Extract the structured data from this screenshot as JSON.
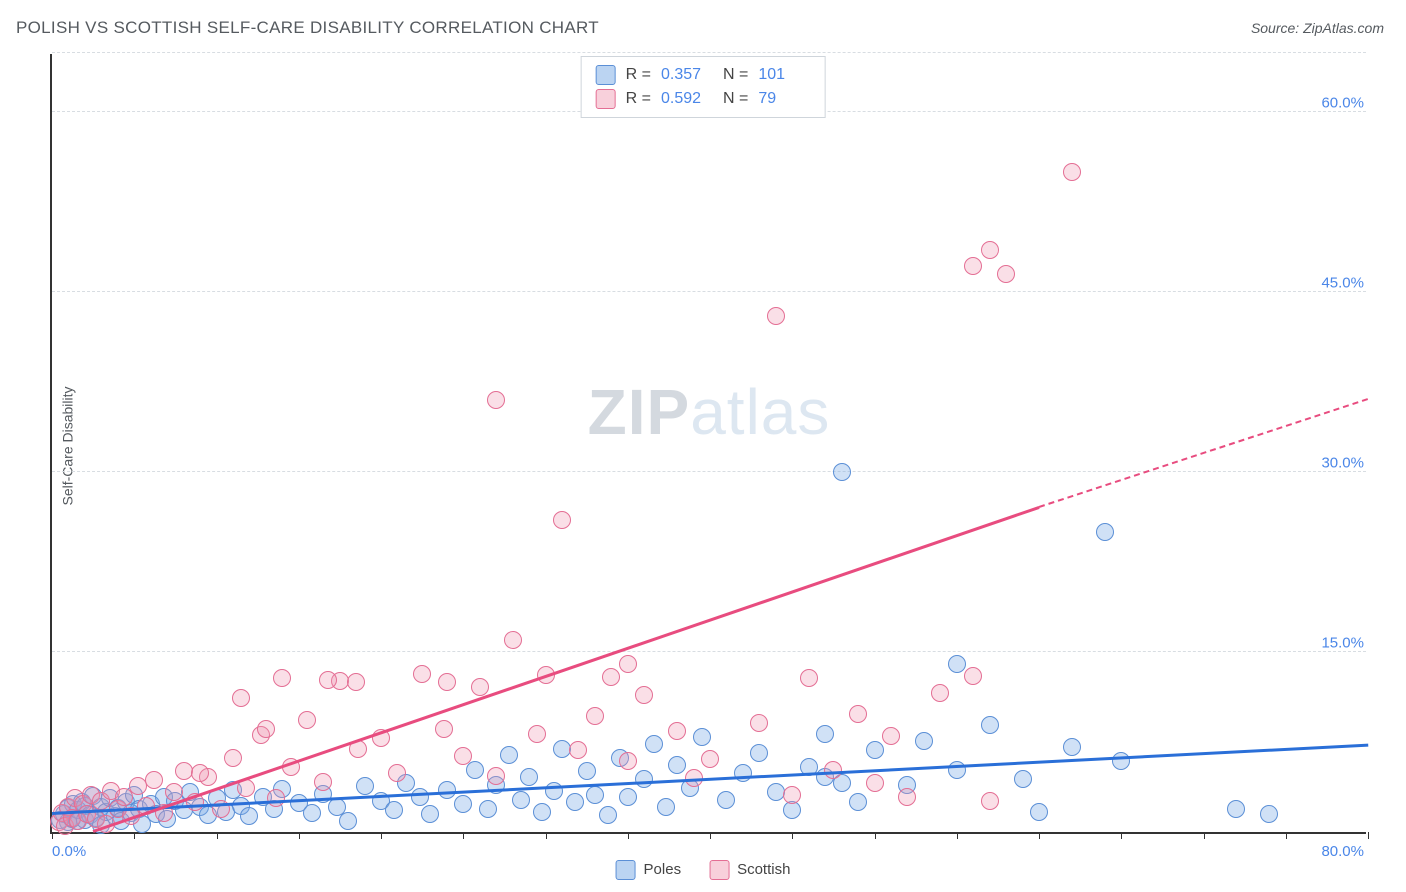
{
  "title": "POLISH VS SCOTTISH SELF-CARE DISABILITY CORRELATION CHART",
  "source": "Source: ZipAtlas.com",
  "ylabel": "Self-Care Disability",
  "watermark": {
    "bold": "ZIP",
    "rest": "atlas"
  },
  "chart": {
    "type": "scatter",
    "xlim": [
      0,
      80
    ],
    "ylim": [
      0,
      65
    ],
    "yticks": [
      15,
      30,
      45,
      60
    ],
    "ytick_labels": [
      "15.0%",
      "30.0%",
      "45.0%",
      "60.0%"
    ],
    "xtick_step": 5,
    "x_min_label": "0.0%",
    "x_max_label": "80.0%",
    "grid_color": "#d8dde2",
    "background_color": "#ffffff",
    "axis_color": "#333333",
    "marker_radius": 9,
    "series": [
      {
        "name": "Poles",
        "color_fill": "rgba(120,170,230,0.35)",
        "color_stroke": "#5b8fd6",
        "trend_color": "#2a6fd8",
        "R": "0.357",
        "N": "101",
        "trend": {
          "x1": 0,
          "y1": 1.5,
          "x2": 80,
          "y2": 7.2
        },
        "points": [
          [
            0.5,
            1
          ],
          [
            0.7,
            1.5
          ],
          [
            1,
            0.8
          ],
          [
            1,
            2
          ],
          [
            1.2,
            1.1
          ],
          [
            1.3,
            2.3
          ],
          [
            1.5,
            0.9
          ],
          [
            1.6,
            1.8
          ],
          [
            1.8,
            2.5
          ],
          [
            2,
            1
          ],
          [
            2,
            2.2
          ],
          [
            2.3,
            1.4
          ],
          [
            2.5,
            3
          ],
          [
            2.7,
            1.2
          ],
          [
            3,
            2.1
          ],
          [
            3,
            0.6
          ],
          [
            3.3,
            1.7
          ],
          [
            3.5,
            2.8
          ],
          [
            3.8,
            1.3
          ],
          [
            4,
            2
          ],
          [
            4.2,
            0.9
          ],
          [
            4.5,
            2.5
          ],
          [
            4.8,
            1.6
          ],
          [
            5,
            3.1
          ],
          [
            5.3,
            1.9
          ],
          [
            5.5,
            0.7
          ],
          [
            6,
            2.3
          ],
          [
            6.3,
            1.5
          ],
          [
            6.8,
            2.9
          ],
          [
            7,
            1.1
          ],
          [
            7.5,
            2.6
          ],
          [
            8,
            1.8
          ],
          [
            8.4,
            3.3
          ],
          [
            9,
            2.1
          ],
          [
            9.5,
            1.4
          ],
          [
            10,
            2.8
          ],
          [
            10.6,
            1.7
          ],
          [
            11,
            3.5
          ],
          [
            11.5,
            2.2
          ],
          [
            12,
            1.3
          ],
          [
            12.8,
            2.9
          ],
          [
            13.5,
            1.9
          ],
          [
            14,
            3.6
          ],
          [
            15,
            2.4
          ],
          [
            15.8,
            1.6
          ],
          [
            16.5,
            3.2
          ],
          [
            17.3,
            2.1
          ],
          [
            18,
            0.9
          ],
          [
            19,
            3.8
          ],
          [
            20,
            2.6
          ],
          [
            20.8,
            1.8
          ],
          [
            21.5,
            4.1
          ],
          [
            22.4,
            2.9
          ],
          [
            23,
            1.5
          ],
          [
            24,
            3.5
          ],
          [
            25,
            2.3
          ],
          [
            25.7,
            5.2
          ],
          [
            26.5,
            1.9
          ],
          [
            27,
            3.9
          ],
          [
            27.8,
            6.4
          ],
          [
            28.5,
            2.7
          ],
          [
            29,
            4.6
          ],
          [
            29.8,
            1.7
          ],
          [
            30.5,
            3.4
          ],
          [
            31,
            6.9
          ],
          [
            31.8,
            2.5
          ],
          [
            32.5,
            5.1
          ],
          [
            33,
            3.1
          ],
          [
            33.8,
            1.4
          ],
          [
            34.5,
            6.2
          ],
          [
            35,
            2.9
          ],
          [
            36,
            4.4
          ],
          [
            36.6,
            7.3
          ],
          [
            37.3,
            2.1
          ],
          [
            38,
            5.6
          ],
          [
            38.8,
            3.7
          ],
          [
            39.5,
            7.9
          ],
          [
            41,
            2.7
          ],
          [
            42,
            4.9
          ],
          [
            43,
            6.6
          ],
          [
            44,
            3.3
          ],
          [
            45,
            1.8
          ],
          [
            46,
            5.4
          ],
          [
            47,
            8.2
          ],
          [
            48,
            4.1
          ],
          [
            49,
            2.5
          ],
          [
            50,
            6.8
          ],
          [
            52,
            3.9
          ],
          [
            53,
            7.6
          ],
          [
            48,
            30
          ],
          [
            55,
            5.2
          ],
          [
            57,
            8.9
          ],
          [
            59,
            4.4
          ],
          [
            62,
            7.1
          ],
          [
            64,
            25
          ],
          [
            55,
            14
          ],
          [
            60,
            1.7
          ],
          [
            65,
            5.9
          ],
          [
            72,
            1.9
          ],
          [
            74,
            1.5
          ],
          [
            47,
            4.6
          ]
        ]
      },
      {
        "name": "Scottish",
        "color_fill": "rgba(240,150,175,0.30)",
        "color_stroke": "#e46e94",
        "trend_color": "#e84c7f",
        "R": "0.592",
        "N": "79",
        "trend": {
          "x1": 2.5,
          "y1": 0,
          "x2": 60,
          "y2": 27
        },
        "trend_dash": {
          "x1": 60,
          "y1": 27,
          "x2": 80,
          "y2": 36
        },
        "points": [
          [
            0.4,
            0.8
          ],
          [
            0.6,
            1.6
          ],
          [
            0.8,
            0.5
          ],
          [
            1,
            2.1
          ],
          [
            1.2,
            1.2
          ],
          [
            1.4,
            2.8
          ],
          [
            1.6,
            0.9
          ],
          [
            1.9,
            2.3
          ],
          [
            2.1,
            1.5
          ],
          [
            2.4,
            3.1
          ],
          [
            2.7,
            1.1
          ],
          [
            3,
            2.6
          ],
          [
            3.3,
            0.7
          ],
          [
            3.6,
            3.4
          ],
          [
            4,
            1.9
          ],
          [
            4.4,
            2.9
          ],
          [
            4.8,
            1.3
          ],
          [
            5.2,
            3.8
          ],
          [
            5.7,
            2.2
          ],
          [
            6.2,
            4.3
          ],
          [
            6.8,
            1.6
          ],
          [
            7.4,
            3.3
          ],
          [
            8,
            5.1
          ],
          [
            8.7,
            2.5
          ],
          [
            9.5,
            4.6
          ],
          [
            10.3,
            1.9
          ],
          [
            11,
            6.2
          ],
          [
            11.8,
            3.7
          ],
          [
            12.7,
            8.1
          ],
          [
            13.6,
            2.8
          ],
          [
            14.5,
            5.4
          ],
          [
            15.5,
            9.3
          ],
          [
            16.5,
            4.2
          ],
          [
            17.5,
            12.6
          ],
          [
            18.6,
            6.9
          ],
          [
            14,
            12.8
          ],
          [
            20,
            7.8
          ],
          [
            21,
            4.9
          ],
          [
            22.5,
            13.2
          ],
          [
            23.8,
            8.6
          ],
          [
            25,
            6.3
          ],
          [
            26,
            12.1
          ],
          [
            27,
            4.7
          ],
          [
            28,
            16
          ],
          [
            24,
            12.5
          ],
          [
            29.5,
            8.2
          ],
          [
            30,
            13.1
          ],
          [
            31,
            26
          ],
          [
            32,
            6.8
          ],
          [
            33,
            9.7
          ],
          [
            34,
            12.9
          ],
          [
            35,
            5.9
          ],
          [
            36,
            11.4
          ],
          [
            39,
            4.5
          ],
          [
            40,
            6.1
          ],
          [
            44,
            43
          ],
          [
            45,
            3.1
          ],
          [
            46,
            12.8
          ],
          [
            47.5,
            5.2
          ],
          [
            50,
            4.1
          ],
          [
            52,
            2.9
          ],
          [
            54,
            11.6
          ],
          [
            56,
            47.2
          ],
          [
            57,
            48.5
          ],
          [
            58,
            46.5
          ],
          [
            62,
            55
          ],
          [
            57,
            2.6
          ],
          [
            27,
            36
          ],
          [
            18.5,
            12.5
          ],
          [
            16.8,
            12.7
          ],
          [
            9,
            4.9
          ],
          [
            11.5,
            11.2
          ],
          [
            13,
            8.6
          ],
          [
            35,
            14
          ],
          [
            43,
            9.1
          ],
          [
            49,
            9.8
          ],
          [
            51,
            8
          ],
          [
            56,
            13
          ],
          [
            38,
            8.4
          ]
        ]
      }
    ]
  },
  "legend_top": {
    "r_label": "R =",
    "n_label": "N ="
  },
  "legend_bottom": [
    {
      "swatch": "blue",
      "label": "Poles"
    },
    {
      "swatch": "pink",
      "label": "Scottish"
    }
  ]
}
